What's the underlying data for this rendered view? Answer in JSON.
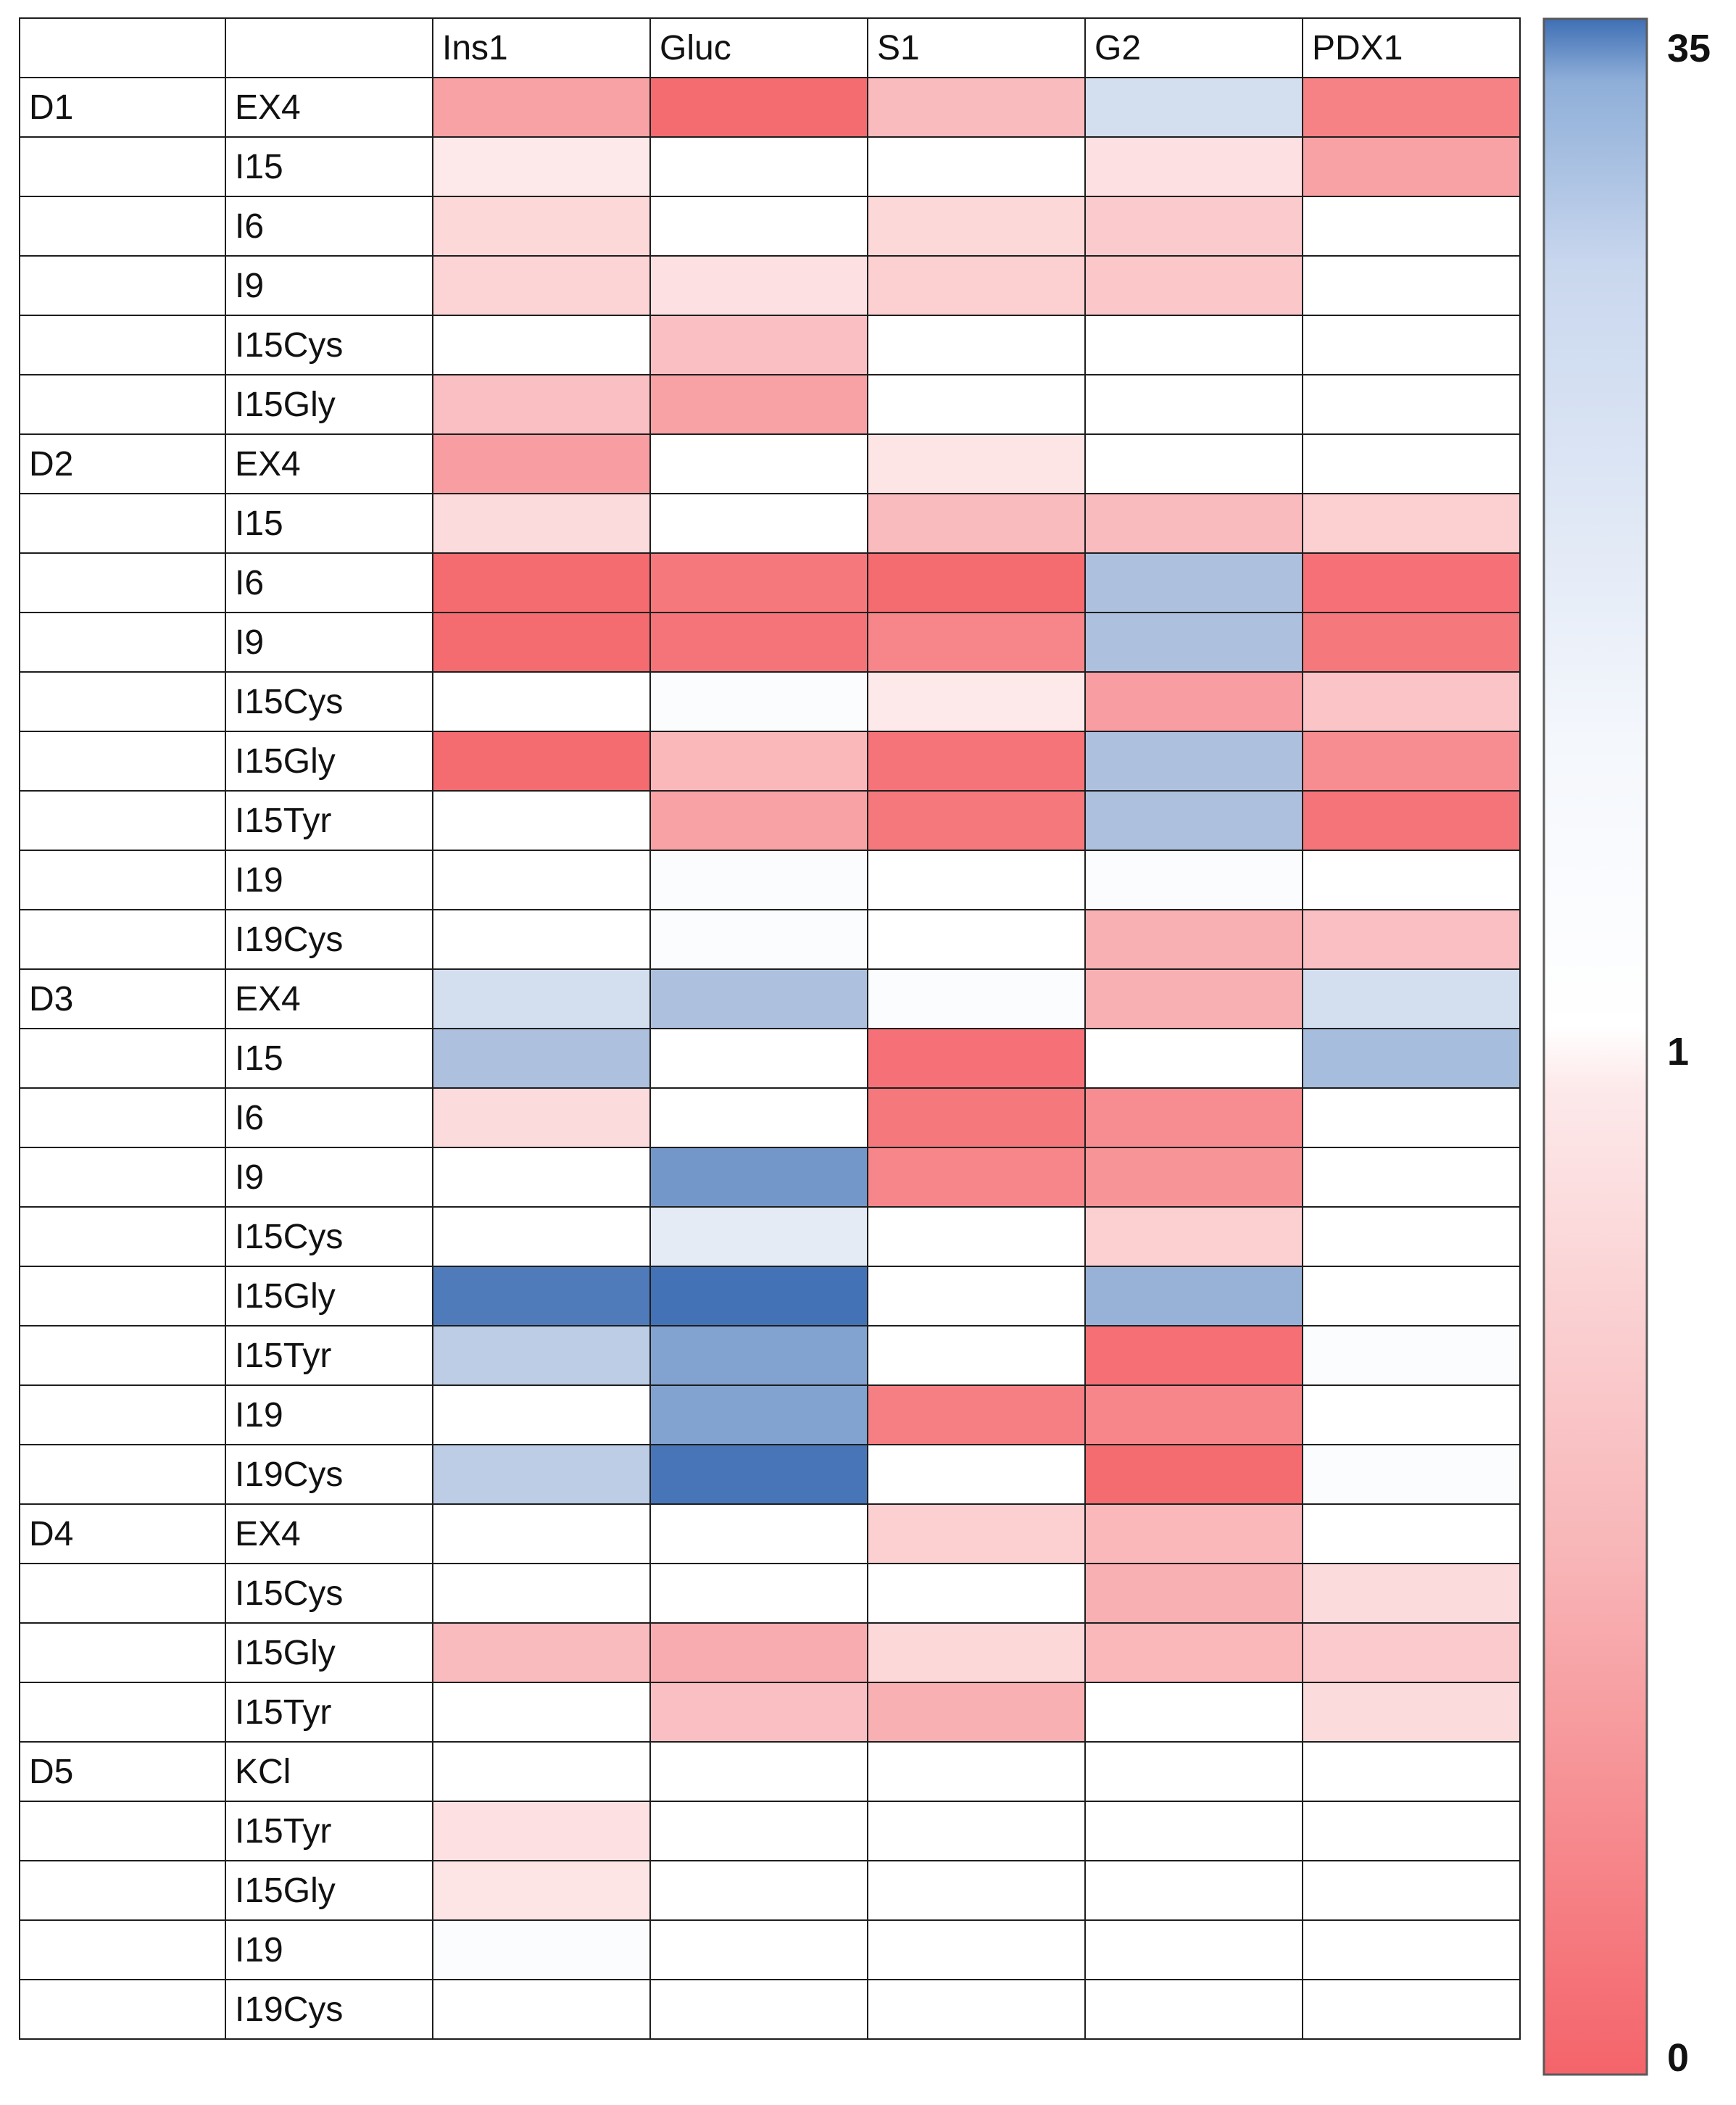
{
  "chart_data": {
    "type": "heatmap",
    "columns": [
      "Ins1",
      "Gluc",
      "S1",
      "G2",
      "PDX1"
    ],
    "rows": [
      {
        "group": "D1",
        "label": "EX4",
        "values": [
          0.45,
          0.05,
          0.62,
          2.0,
          0.22
        ]
      },
      {
        "group": "",
        "label": "I15",
        "values": [
          0.9,
          1.0,
          1.0,
          0.85,
          0.45
        ]
      },
      {
        "group": "",
        "label": "I6",
        "values": [
          0.8,
          1.0,
          0.8,
          0.72,
          1.0
        ]
      },
      {
        "group": "",
        "label": "I9",
        "values": [
          0.78,
          0.85,
          0.75,
          0.7,
          1.0
        ]
      },
      {
        "group": "",
        "label": "I15Cys",
        "values": [
          1.0,
          0.65,
          1.0,
          1.0,
          1.0
        ]
      },
      {
        "group": "",
        "label": "I15Gly",
        "values": [
          0.65,
          0.45,
          1.0,
          1.0,
          1.0
        ]
      },
      {
        "group": "D2",
        "label": "EX4",
        "values": [
          0.42,
          1.0,
          0.88,
          1.0,
          1.0
        ]
      },
      {
        "group": "",
        "label": "I15",
        "values": [
          0.82,
          1.0,
          0.62,
          0.62,
          0.75
        ]
      },
      {
        "group": "",
        "label": "I6",
        "values": [
          0.05,
          0.15,
          0.05,
          4.0,
          0.1
        ]
      },
      {
        "group": "",
        "label": "I9",
        "values": [
          0.05,
          0.12,
          0.25,
          4.0,
          0.15
        ]
      },
      {
        "group": "",
        "label": "I15Cys",
        "values": [
          1.0,
          1.05,
          0.9,
          0.42,
          0.68
        ]
      },
      {
        "group": "",
        "label": "I15Gly",
        "values": [
          0.05,
          0.6,
          0.12,
          4.0,
          0.3
        ]
      },
      {
        "group": "",
        "label": "I15Tyr",
        "values": [
          1.0,
          0.45,
          0.15,
          4.0,
          0.12
        ]
      },
      {
        "group": "",
        "label": "I19",
        "values": [
          1.0,
          1.05,
          1.0,
          1.05,
          1.0
        ]
      },
      {
        "group": "",
        "label": "I19Cys",
        "values": [
          1.0,
          1.05,
          1.0,
          0.55,
          0.65
        ]
      },
      {
        "group": "D3",
        "label": "EX4",
        "values": [
          2.0,
          4.0,
          1.05,
          0.55,
          2.0
        ]
      },
      {
        "group": "",
        "label": "I15",
        "values": [
          4.0,
          1.0,
          0.1,
          1.0,
          4.5
        ]
      },
      {
        "group": "",
        "label": "I6",
        "values": [
          0.82,
          1.0,
          0.15,
          0.3,
          1.0
        ]
      },
      {
        "group": "",
        "label": "I9",
        "values": [
          1.0,
          12.0,
          0.25,
          0.35,
          1.0
        ]
      },
      {
        "group": "",
        "label": "I15Cys",
        "values": [
          1.0,
          1.5,
          1.0,
          0.75,
          1.0
        ]
      },
      {
        "group": "",
        "label": "I15Gly",
        "values": [
          25.0,
          32.0,
          1.0,
          6.0,
          1.0
        ]
      },
      {
        "group": "",
        "label": "I15Tyr",
        "values": [
          3.0,
          9.0,
          1.0,
          0.08,
          1.05
        ]
      },
      {
        "group": "",
        "label": "I19",
        "values": [
          1.0,
          9.0,
          0.2,
          0.25,
          1.0
        ]
      },
      {
        "group": "",
        "label": "I19Cys",
        "values": [
          3.0,
          30.0,
          1.0,
          0.05,
          1.05
        ]
      },
      {
        "group": "D4",
        "label": "EX4",
        "values": [
          1.0,
          1.0,
          0.75,
          0.6,
          1.0
        ]
      },
      {
        "group": "",
        "label": "I15Cys",
        "values": [
          1.0,
          1.0,
          1.0,
          0.55,
          0.82
        ]
      },
      {
        "group": "",
        "label": "I15Gly",
        "values": [
          0.62,
          0.52,
          0.8,
          0.6,
          0.72
        ]
      },
      {
        "group": "",
        "label": "I15Tyr",
        "values": [
          1.0,
          0.65,
          0.55,
          1.0,
          0.82
        ]
      },
      {
        "group": "D5",
        "label": "KCl",
        "values": [
          1.0,
          1.0,
          1.0,
          1.0,
          1.0
        ]
      },
      {
        "group": "",
        "label": "I15Tyr",
        "values": [
          0.85,
          1.0,
          1.0,
          1.0,
          1.0
        ]
      },
      {
        "group": "",
        "label": "I15Gly",
        "values": [
          0.88,
          1.0,
          1.0,
          1.0,
          1.0
        ]
      },
      {
        "group": "",
        "label": "I19",
        "values": [
          1.05,
          1.0,
          1.0,
          1.0,
          1.0
        ]
      },
      {
        "group": "",
        "label": "I19Cys",
        "values": [
          1.0,
          1.0,
          1.0,
          1.0,
          1.0
        ]
      }
    ],
    "color_scale": {
      "min": 0,
      "mid": 1,
      "max": 35,
      "min_label": "0",
      "mid_label": "1",
      "max_label": "35",
      "low_color": "#f4646a",
      "mid_color": "#ffffff",
      "high_color": "#3f6fb5"
    },
    "title": "",
    "xlabel": "",
    "ylabel": ""
  }
}
